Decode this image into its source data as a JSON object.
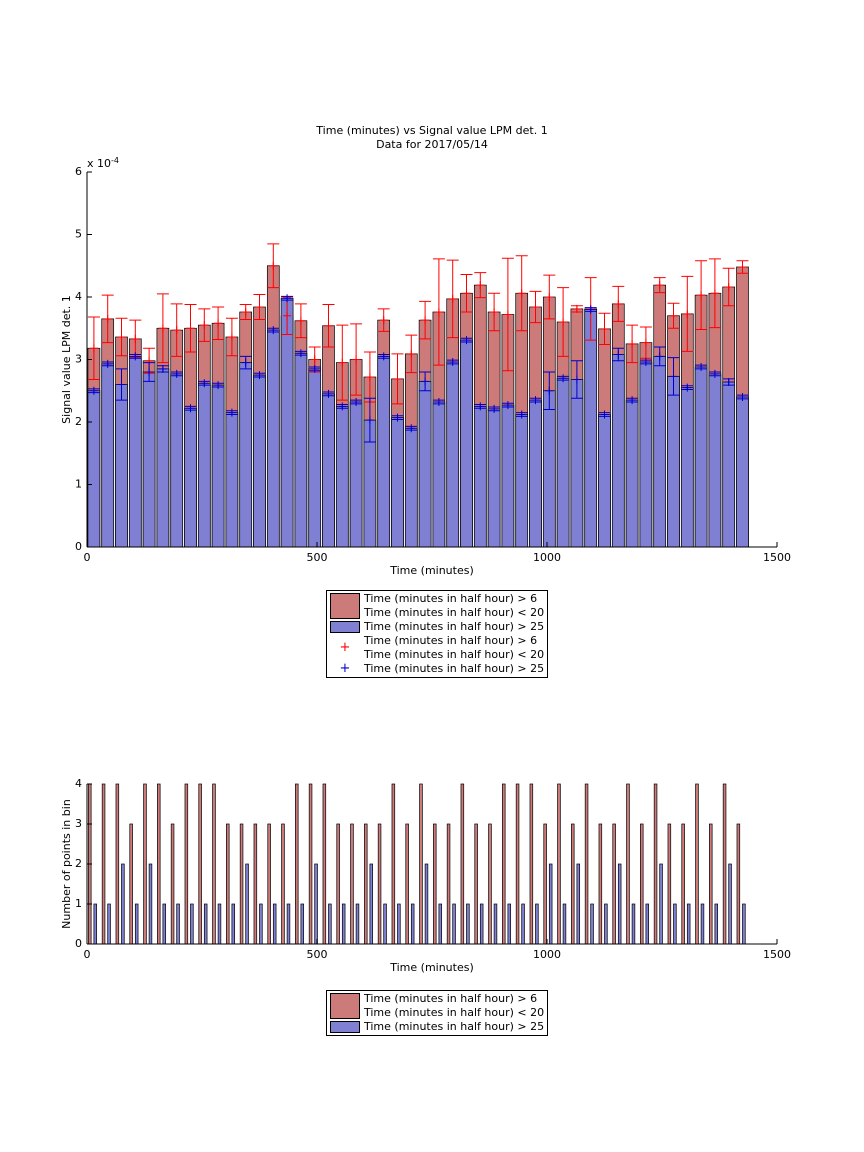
{
  "chart_data": [
    {
      "type": "bar",
      "title": "Time (minutes) vs Signal value LPM det. 1",
      "subtitle": "Data for 2017/05/14",
      "xlabel": "Time (minutes)",
      "ylabel": "Signal value LPM det. 1",
      "y_multiplier": {
        "base": "x 10",
        "exponent": "-4"
      },
      "xlim": [
        0,
        1500
      ],
      "xticks": [
        0,
        500,
        1000,
        1500
      ],
      "ylim": [
        0,
        6
      ],
      "yticks": [
        0,
        1,
        2,
        3,
        4,
        5,
        6
      ],
      "x": [
        15,
        45,
        75,
        105,
        135,
        165,
        195,
        225,
        255,
        285,
        315,
        345,
        375,
        405,
        435,
        465,
        495,
        525,
        555,
        585,
        615,
        645,
        675,
        705,
        735,
        765,
        795,
        825,
        855,
        885,
        915,
        945,
        975,
        1005,
        1035,
        1065,
        1095,
        1125,
        1155,
        1185,
        1215,
        1245,
        1275,
        1305,
        1335,
        1365,
        1395,
        1425
      ],
      "series": [
        {
          "name": "Time (minutes in half hour) > 6\nTime (minutes in half hour) < 20",
          "color": "#cc7a7a",
          "error_color": "#ff0000",
          "values": [
            3.18,
            3.65,
            3.36,
            3.33,
            2.98,
            3.5,
            3.47,
            3.5,
            3.55,
            3.58,
            3.36,
            3.76,
            3.84,
            4.5,
            3.7,
            3.62,
            3.0,
            3.54,
            2.95,
            3.0,
            2.72,
            3.63,
            2.69,
            3.09,
            3.63,
            3.76,
            3.97,
            4.06,
            4.19,
            3.76,
            3.72,
            4.06,
            3.84,
            4.0,
            3.6,
            3.81,
            3.81,
            3.49,
            3.89,
            3.25,
            3.27,
            4.19,
            3.7,
            3.73,
            4.03,
            4.06,
            4.16,
            4.48
          ],
          "errors": [
            0.5,
            0.38,
            0.3,
            0.3,
            0.2,
            0.55,
            0.42,
            0.38,
            0.26,
            0.26,
            0.3,
            0.12,
            0.2,
            0.35,
            0.3,
            0.27,
            0.2,
            0.34,
            0.6,
            0.57,
            0.4,
            0.18,
            0.4,
            0.3,
            0.3,
            0.85,
            0.62,
            0.3,
            0.2,
            0.3,
            0.9,
            0.6,
            0.25,
            0.35,
            0.55,
            0.05,
            0.5,
            0.25,
            0.28,
            0.3,
            0.25,
            0.12,
            0.2,
            0.6,
            0.55,
            0.55,
            0.3,
            0.1
          ]
        },
        {
          "name": "Time (minutes in half hour) > 25",
          "color": "#7f7fd4",
          "error_color": "#0000cc",
          "values": [
            2.5,
            2.93,
            2.6,
            3.05,
            2.8,
            2.85,
            2.77,
            2.22,
            2.62,
            2.59,
            2.15,
            2.95,
            2.75,
            3.47,
            3.98,
            3.1,
            2.85,
            2.45,
            2.25,
            2.32,
            2.03,
            3.05,
            2.07,
            1.9,
            2.65,
            2.32,
            2.96,
            3.31,
            2.25,
            2.21,
            2.27,
            2.12,
            2.35,
            2.5,
            2.7,
            2.68,
            3.8,
            2.12,
            3.08,
            2.35,
            2.96,
            3.05,
            2.73,
            2.55,
            2.88,
            2.77,
            2.64,
            2.4
          ],
          "errors": [
            0.03,
            0.03,
            0.25,
            0.03,
            0.15,
            0.05,
            0.03,
            0.03,
            0.03,
            0.03,
            0.03,
            0.1,
            0.03,
            0.03,
            0.03,
            0.03,
            0.03,
            0.03,
            0.03,
            0.03,
            0.35,
            0.03,
            0.03,
            0.03,
            0.15,
            0.03,
            0.03,
            0.03,
            0.03,
            0.03,
            0.03,
            0.03,
            0.03,
            0.3,
            0.03,
            0.3,
            0.03,
            0.03,
            0.1,
            0.03,
            0.03,
            0.15,
            0.3,
            0.03,
            0.03,
            0.03,
            0.05,
            0.03
          ]
        }
      ]
    },
    {
      "type": "bar",
      "xlabel": "Time (minutes)",
      "ylabel": "Number of points in bin",
      "xlim": [
        0,
        1500
      ],
      "xticks": [
        0,
        500,
        1000,
        1500
      ],
      "ylim": [
        0,
        4
      ],
      "yticks": [
        0,
        1,
        2,
        3,
        4
      ],
      "series": [
        {
          "name": "Time (minutes in half hour) > 6\nTime (minutes in half hour) < 20",
          "color": "#cc7a7a",
          "x": [
            6,
            36,
            66,
            96,
            126,
            156,
            186,
            216,
            246,
            276,
            306,
            336,
            366,
            396,
            426,
            456,
            486,
            516,
            546,
            576,
            606,
            636,
            666,
            696,
            726,
            756,
            786,
            816,
            846,
            876,
            906,
            936,
            966,
            996,
            1026,
            1056,
            1086,
            1116,
            1146,
            1176,
            1206,
            1236,
            1266,
            1296,
            1326,
            1356,
            1386,
            1416
          ],
          "values": [
            4,
            4,
            4,
            3,
            4,
            4,
            3,
            4,
            4,
            4,
            3,
            3,
            3,
            3,
            3,
            4,
            4,
            4,
            3,
            3,
            3,
            3,
            4,
            3,
            4,
            3,
            3,
            4,
            3,
            3,
            4,
            4,
            4,
            3,
            4,
            3,
            4,
            3,
            3,
            4,
            3,
            4,
            3,
            3,
            4,
            3,
            4,
            3
          ]
        },
        {
          "name": "Time (minutes in half hour) > 25",
          "color": "#7f7fd4",
          "x": [
            18,
            48,
            78,
            108,
            138,
            168,
            198,
            228,
            258,
            288,
            318,
            348,
            378,
            408,
            438,
            468,
            498,
            528,
            558,
            588,
            618,
            648,
            678,
            708,
            738,
            768,
            798,
            828,
            858,
            888,
            918,
            948,
            978,
            1008,
            1038,
            1068,
            1098,
            1128,
            1158,
            1188,
            1218,
            1248,
            1278,
            1308,
            1338,
            1368,
            1398,
            1428
          ],
          "values": [
            1,
            1,
            2,
            1,
            2,
            1,
            1,
            1,
            1,
            1,
            1,
            2,
            1,
            1,
            1,
            1,
            2,
            1,
            1,
            1,
            2,
            1,
            1,
            1,
            2,
            1,
            1,
            1,
            1,
            1,
            1,
            1,
            1,
            2,
            1,
            2,
            1,
            1,
            2,
            1,
            1,
            2,
            1,
            1,
            1,
            1,
            2,
            1
          ]
        }
      ]
    }
  ]
}
